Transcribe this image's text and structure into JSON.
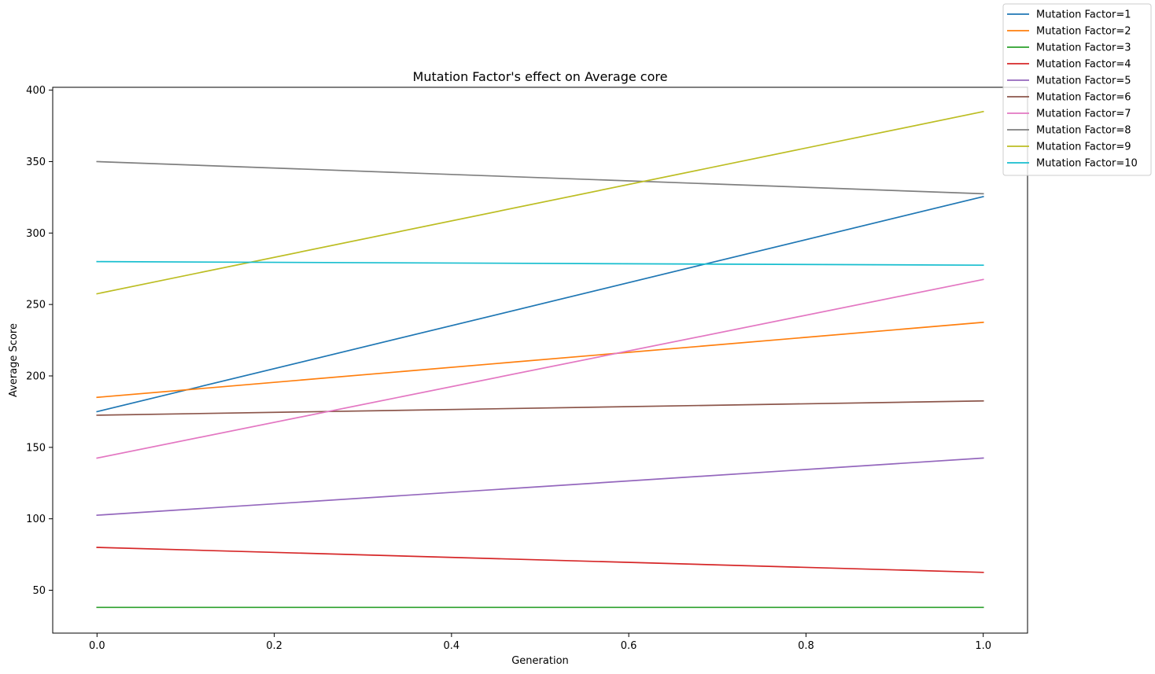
{
  "chart_data": {
    "type": "line",
    "title": "Mutation Factor's effect on Average core",
    "xlabel": "Generation",
    "ylabel": "Average Score",
    "x": [
      0,
      1
    ],
    "xlim": [
      -0.05,
      1.05
    ],
    "ylim": [
      20,
      402
    ],
    "xticks": [
      "0.0",
      "0.2",
      "0.4",
      "0.6",
      "0.8",
      "1.0"
    ],
    "xtick_values": [
      0,
      0.2,
      0.4,
      0.6,
      0.8,
      1.0
    ],
    "yticks": [
      "50",
      "100",
      "150",
      "200",
      "250",
      "300",
      "350",
      "400"
    ],
    "ytick_values": [
      50,
      100,
      150,
      200,
      250,
      300,
      350,
      400
    ],
    "grid": false,
    "legend_position": "top-right, outside plot",
    "series": [
      {
        "name": "Mutation Factor=1",
        "color": "#1f77b4",
        "values": [
          175,
          325.5
        ]
      },
      {
        "name": "Mutation Factor=2",
        "color": "#ff7f0e",
        "values": [
          185,
          237.5
        ]
      },
      {
        "name": "Mutation Factor=3",
        "color": "#2ca02c",
        "values": [
          38,
          38
        ]
      },
      {
        "name": "Mutation Factor=4",
        "color": "#d62728",
        "values": [
          80,
          62.5
        ]
      },
      {
        "name": "Mutation Factor=5",
        "color": "#9467bd",
        "values": [
          102.5,
          142.5
        ]
      },
      {
        "name": "Mutation Factor=6",
        "color": "#8c564b",
        "values": [
          172.5,
          182.5
        ]
      },
      {
        "name": "Mutation Factor=7",
        "color": "#e377c2",
        "values": [
          142.5,
          267.5
        ]
      },
      {
        "name": "Mutation Factor=8",
        "color": "#7f7f7f",
        "values": [
          350,
          327.5
        ]
      },
      {
        "name": "Mutation Factor=9",
        "color": "#bcbd22",
        "values": [
          257.5,
          385
        ]
      },
      {
        "name": "Mutation Factor=10",
        "color": "#17becf",
        "values": [
          280,
          277.5
        ]
      }
    ]
  }
}
